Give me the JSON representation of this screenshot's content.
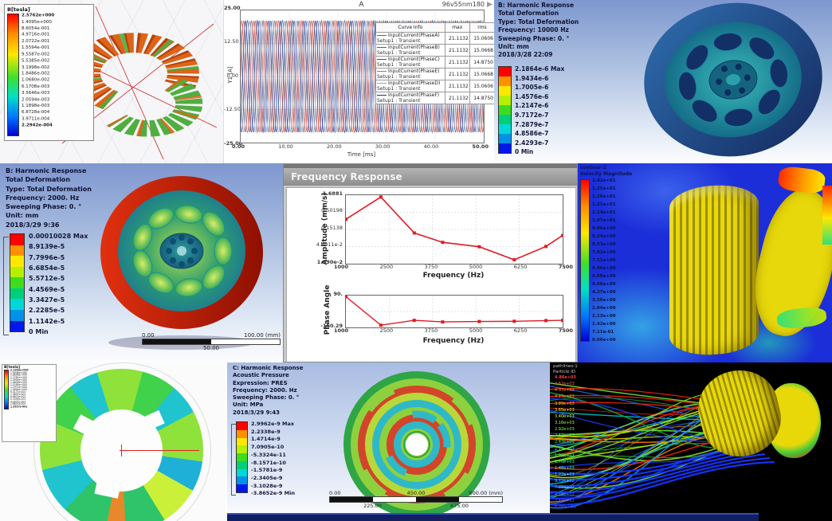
{
  "colors": {
    "ramp9": [
      "#ff0000",
      "#ff9100",
      "#ffe800",
      "#b4f000",
      "#3ddc1e",
      "#00cf7a",
      "#00d8d8",
      "#0092e8",
      "#0018e8"
    ],
    "accent_red": "#e01b24",
    "panel_e_bg": "#1c2ed8",
    "strip_navy": "#121f63"
  },
  "panels": {
    "maxwell_torus": {
      "legend_title": "B[tesla]",
      "legend_values": [
        "2.5762e+000",
        "1.4095e+000",
        "8.6054e-001",
        "4.9716e-001",
        "2.0722e-001",
        "1.5594e-001",
        "9.5587e-002",
        "5.5385e-002",
        "3.1998e-002",
        "1.8486e-002",
        "1.0680e-002",
        "6.1708e-003",
        "3.5646e-003",
        "2.0594e-003",
        "1.1898e-003",
        "6.8728e-004",
        "3.9711e-004",
        "2.2942e-004"
      ]
    },
    "current_plot": {
      "title": "A",
      "corner_label": "96v55nm180",
      "y_axis_label": "Y1 [A]",
      "x_axis_label": "Time [ms]",
      "y_ticks": [
        "25.00",
        "12.50",
        "0.00",
        "-12.50",
        "-25.00"
      ],
      "x_ticks": [
        "0.00",
        "10.00",
        "20.00",
        "30.00",
        "40.00",
        "50.00"
      ],
      "table": {
        "headers": [
          "Curve Info",
          "max",
          "rms"
        ],
        "rows": [
          {
            "name": "InputCurrent(PhaseA)",
            "setup": "Setup1 : Transient",
            "max": "21.1132",
            "rms": "15.0606",
            "color": "#c23b2e"
          },
          {
            "name": "InputCurrent(PhaseB)",
            "setup": "Setup1 : Transient",
            "max": "21.1132",
            "rms": "15.0668",
            "color": "#555c77"
          },
          {
            "name": "InputCurrent(PhaseC)",
            "setup": "Setup1 : Transient",
            "max": "21.1132",
            "rms": "14.8750",
            "color": "#2f4eaa"
          },
          {
            "name": "InputCurrent(PhaseE)",
            "setup": "Setup1 : Transient",
            "max": "21.1132",
            "rms": "15.0668",
            "color": "#d4605a"
          },
          {
            "name": "InputCurrent(PhaseD)",
            "setup": "Setup1 : Transient",
            "max": "21.1132",
            "rms": "15.0606",
            "color": "#97a3b8"
          },
          {
            "name": "InputCurrent(PhaseF)",
            "setup": "Setup1 : Transient",
            "max": "21.1132",
            "rms": "14.8750",
            "color": "#1e2f80"
          }
        ]
      }
    },
    "harmonic_10000": {
      "header_lines": [
        "B: Harmonic Response",
        "Total Deformation",
        "Type: Total Deformation",
        "Frequency: 10000 Hz",
        "Sweeping Phase: 0. °",
        "Unit: mm",
        "2018/3/28 22:09"
      ],
      "legend_values": [
        "2.1864e-6 Max",
        "1.9434e-6",
        "1.7005e-6",
        "1.4576e-6",
        "1.2147e-6",
        "9.7172e-7",
        "7.2879e-7",
        "4.8586e-7",
        "2.4293e-7",
        "0 Min"
      ]
    },
    "harmonic_2000": {
      "header_lines": [
        "B: Harmonic Response",
        "Total Deformation",
        "Type: Total Deformation",
        "Frequency: 2000. Hz",
        "Sweeping Phase: 0. °",
        "Unit: mm",
        "2018/3/29 9:36"
      ],
      "legend_values": [
        "0.00010028 Max",
        "8.9139e-5",
        "7.7996e-5",
        "6.6854e-5",
        "5.5712e-5",
        "4.4569e-5",
        "3.3427e-5",
        "2.2285e-5",
        "1.1142e-5",
        "0 Min"
      ],
      "scale_bar": {
        "start": "0.00",
        "mid": "50.00",
        "end": "100.00 (mm)"
      }
    },
    "frequency_response": {
      "window_title": "Frequency Response",
      "amp_ylabel": "Amplitude (mm/s)",
      "phase_ylabel": "Phase Angle",
      "xlabel": "Frequency (Hz)",
      "amp_yticks": [
        "1.6881",
        "0.50198",
        "0.15138",
        "4.6011e-2",
        "1.390e-2"
      ],
      "phase_yticks": [
        "90.",
        "-160.29"
      ],
      "x_ticks": [
        "1000",
        "2500",
        "3750",
        "5000",
        "6250",
        "7500"
      ]
    },
    "cfd_velocity": {
      "legend_title_lines": [
        "contour-2",
        "Velocity Magnitude"
      ],
      "legend_values": [
        "1.42e+01",
        "1.35e+01",
        "1.28e+01",
        "1.21e+01",
        "1.14e+01",
        "1.07e+01",
        "9.96e+00",
        "9.24e+00",
        "8.53e+00",
        "7.82e+00",
        "7.11e+00",
        "6.40e+00",
        "5.69e+00",
        "4.98e+00",
        "4.27e+00",
        "3.56e+00",
        "2.84e+00",
        "2.13e+00",
        "1.42e+00",
        "7.11e-01",
        "0.00e+00"
      ]
    },
    "rotor_field": {
      "legend_title": "B[tesla]",
      "legend_values": [
        "2.1263e+000",
        "1.9936e+000",
        "1.8608e+000",
        "1.7281e+000",
        "1.5954e+000",
        "1.4626e+000",
        "1.3299e+000",
        "1.1972e+000",
        "1.0644e+000",
        "9.3171e-001",
        "7.9897e-001",
        "6.6623e-001",
        "5.3349e-001",
        "4.0075e-001",
        "2.6801e-001",
        "1.3527e-001"
      ]
    },
    "acoustic": {
      "header_lines": [
        "C: Harmonic Response",
        "Acoustic Pressure",
        "Expression: PRES",
        "Frequency: 2000. Hz",
        "Sweeping Phase: 0. °",
        "Unit: MPa",
        "2018/3/29 9:43"
      ],
      "legend_values": [
        "2.9962e-9 Max",
        "2.2338e-9",
        "1.4714e-9",
        "7.0905e-10",
        "-5.3324e-11",
        "-8.1571e-10",
        "-1.5781e-9",
        "-2.3405e-9",
        "-3.1028e-9",
        "-3.8652e-9 Min"
      ],
      "scale_bar": {
        "top_labels": [
          "0.00",
          "450.00",
          "900.00 (mm)"
        ],
        "bottom_labels": [
          "225.00",
          "675.00"
        ]
      }
    },
    "streamlines": {
      "legend_title_lines": [
        "pathlines-1",
        "Particle ID"
      ],
      "legend_values": [
        "4.86e+03",
        "4.62e+03",
        "4.37e+03",
        "4.13e+03",
        "3.89e+03",
        "3.65e+03",
        "3.40e+03",
        "3.16e+03",
        "2.92e+03",
        "2.67e+03",
        "2.43e+03",
        "2.19e+03",
        "1.94e+03",
        "1.70e+03",
        "1.46e+03",
        "1.22e+03",
        "9.72e+02",
        "7.29e+02",
        "4.86e+02",
        "2.43e+02",
        "0.00e+00"
      ],
      "stream_colors": [
        "#1a9e3f",
        "#37c83c",
        "#8fd820",
        "#ffd400",
        "#ff7a00",
        "#e82200",
        "#00c8c8",
        "#2a6aff",
        "#1a3cff",
        "#69e83a",
        "#b8e800",
        "#00a2ff"
      ]
    }
  },
  "chart_data": [
    {
      "type": "line",
      "title": "A",
      "subtitle": "96v55nm180",
      "xlabel": "Time [ms]",
      "ylabel": "Y1 [A]",
      "xlim": [
        0,
        50
      ],
      "ylim": [
        -25,
        25
      ],
      "x_ticks": [
        0,
        10,
        20,
        30,
        40,
        50
      ],
      "y_ticks": [
        25,
        12.5,
        0,
        -12.5,
        -25
      ],
      "grid": true,
      "legend_position": "right-table",
      "waveform": {
        "amplitude": 21.1132,
        "period_ms": 2.4
      },
      "series": [
        {
          "name": "InputCurrent(PhaseA)",
          "max": 21.1132,
          "rms": 15.0606,
          "color": "#c23b2e",
          "phase_frac": 0
        },
        {
          "name": "InputCurrent(PhaseB)",
          "max": 21.1132,
          "rms": 15.0668,
          "color": "#555c77",
          "phase_frac": 0.333
        },
        {
          "name": "InputCurrent(PhaseC)",
          "max": 21.1132,
          "rms": 14.875,
          "color": "#2f4eaa",
          "phase_frac": 0.667
        },
        {
          "name": "InputCurrent(PhaseE)",
          "max": 21.1132,
          "rms": 15.0668,
          "color": "#d4605a",
          "phase_frac": 0.167
        },
        {
          "name": "InputCurrent(PhaseD)",
          "max": 21.1132,
          "rms": 15.0606,
          "color": "#97a3b8",
          "phase_frac": 0.5
        },
        {
          "name": "InputCurrent(PhaseF)",
          "max": 21.1132,
          "rms": 14.875,
          "color": "#1e2f80",
          "phase_frac": 0.833
        }
      ]
    },
    {
      "type": "line",
      "title": "Frequency Response - Amplitude",
      "xlabel": "Frequency (Hz)",
      "ylabel": "Amplitude (mm/s)",
      "y_scale": "log",
      "x_ticks": [
        1000,
        2500,
        3750,
        5000,
        6250,
        7500
      ],
      "y_tick_labels": [
        "1.6881",
        "0.50198",
        "0.15138",
        "4.6011e-2",
        "1.390e-2"
      ],
      "x": [
        1000,
        2050,
        3050,
        3900,
        5000,
        6050,
        7000,
        7500
      ],
      "y": [
        0.32,
        1.6881,
        0.115,
        0.057,
        0.041,
        0.0155,
        0.042,
        0.095
      ],
      "color": "#e01b24",
      "marker": "square",
      "grid": true
    },
    {
      "type": "line",
      "title": "Frequency Response - Phase",
      "xlabel": "Frequency (Hz)",
      "ylabel": "Phase Angle",
      "x_ticks": [
        1000,
        2500,
        3750,
        5000,
        6250,
        7500
      ],
      "y_tick_labels": [
        "90.",
        "-160.29"
      ],
      "ylim": [
        -180,
        100
      ],
      "x": [
        1000,
        2050,
        3050,
        3900,
        5000,
        6050,
        7000,
        7500
      ],
      "y": [
        90,
        -160.29,
        -118,
        -132,
        -128,
        -126,
        -120,
        -118
      ],
      "color": "#e01b24",
      "marker": "square",
      "grid": true
    }
  ]
}
